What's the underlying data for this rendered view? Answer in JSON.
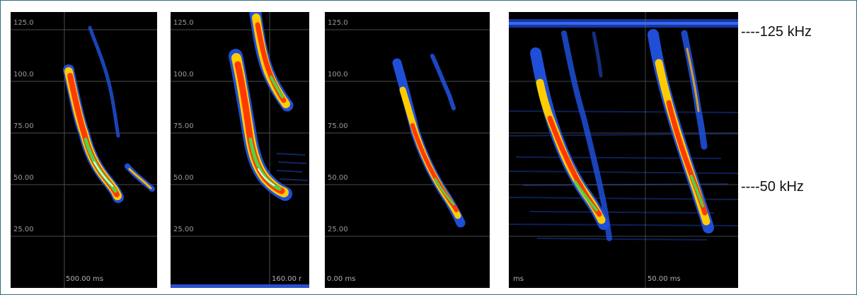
{
  "panels": [
    {
      "id": "p1",
      "yticks": [
        "125.0",
        "100.0",
        "75.00",
        "50.00",
        "25.00"
      ],
      "time_label": "500.00 ms"
    },
    {
      "id": "p2",
      "yticks": [
        "125.0",
        "100.0",
        "75.00",
        "50.00",
        "25.00"
      ],
      "time_label": "160.00 r"
    },
    {
      "id": "p3",
      "yticks": [
        "125.0",
        "100.0",
        "75.00",
        "50.00",
        "25.00"
      ],
      "time_label": "0.00 ms"
    },
    {
      "id": "p4",
      "yticks": [],
      "time_label_left": "ms",
      "time_label": "50.00 ms"
    }
  ],
  "annotations": {
    "upper": "----125 kHz",
    "lower": "----50 kHz"
  },
  "colors": {
    "background": "#000000",
    "grid": "#7a7a7a",
    "spectrogram_low": "#1f4fd8",
    "spectrogram_mid": "#ff6a00",
    "spectrogram_high": "#4fd34a",
    "frame_border": "#2f6f80"
  }
}
